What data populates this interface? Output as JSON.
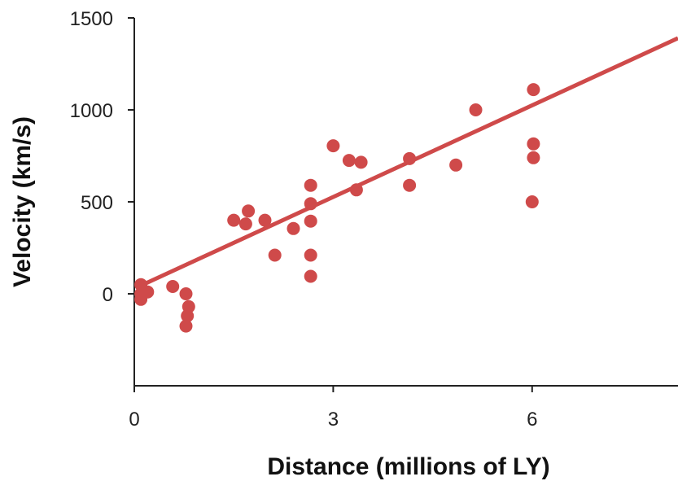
{
  "chart_data": {
    "type": "scatter",
    "title": "",
    "xlabel": "Distance (millions of LY)",
    "ylabel": "Velocity (km/s)",
    "xlim": [
      0,
      8.2
    ],
    "ylim": [
      -500,
      1500
    ],
    "x_ticks": [
      0,
      3,
      6
    ],
    "x_tick_labels": [
      "0",
      "3",
      "6"
    ],
    "y_ticks": [
      0,
      500,
      1000,
      1500
    ],
    "y_tick_labels": [
      "0",
      "500",
      "1000",
      "1500"
    ],
    "grid": false,
    "colors": {
      "points": "#cf4a4a",
      "trend_line": "#cf4a4a",
      "axes": "#222222"
    },
    "series": [
      {
        "points": [
          [
            0.1,
            50
          ],
          [
            0.1,
            0
          ],
          [
            0.1,
            -30
          ],
          [
            0.2,
            10
          ],
          [
            0.58,
            40
          ],
          [
            0.78,
            0
          ],
          [
            0.82,
            -70
          ],
          [
            0.8,
            -120
          ],
          [
            0.78,
            -175
          ],
          [
            1.5,
            400
          ],
          [
            1.68,
            380
          ],
          [
            1.72,
            450
          ],
          [
            1.97,
            400
          ],
          [
            2.12,
            210
          ],
          [
            2.4,
            355
          ],
          [
            2.66,
            590
          ],
          [
            2.66,
            490
          ],
          [
            2.66,
            395
          ],
          [
            2.66,
            210
          ],
          [
            2.66,
            95
          ],
          [
            3.0,
            805
          ],
          [
            3.24,
            725
          ],
          [
            3.35,
            565
          ],
          [
            3.42,
            715
          ],
          [
            4.15,
            735
          ],
          [
            4.15,
            590
          ],
          [
            4.85,
            700
          ],
          [
            5.15,
            1000
          ],
          [
            6.02,
            1110
          ],
          [
            6.02,
            815
          ],
          [
            6.02,
            740
          ],
          [
            6.0,
            500
          ]
        ]
      }
    ],
    "trend_line": {
      "start": [
        0.07,
        40
      ],
      "end": [
        8.2,
        1390
      ]
    }
  }
}
